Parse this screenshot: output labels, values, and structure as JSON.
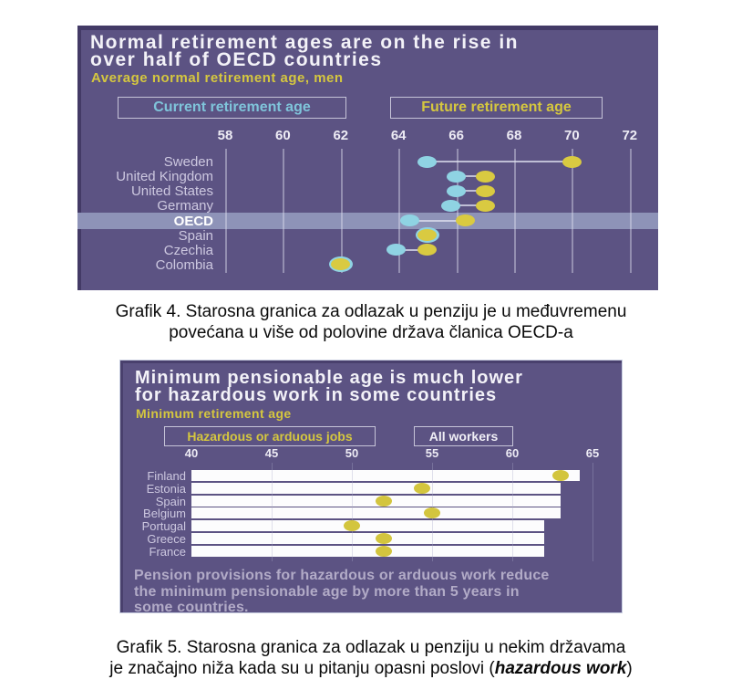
{
  "page_background": "#ffffff",
  "colors": {
    "panel_purple": "#5c5383",
    "highlight_band": "#8e93b8",
    "current_cyan": "#8fd3e3",
    "future_yellow": "#d9ca41",
    "bar_white": "#fcfcfd",
    "gridline": "#d9d7ea",
    "country_label": "#cdc8e0",
    "note_text": "#b2abc7"
  },
  "chart_data": [
    {
      "type": "scatter",
      "variant": "dumbbell-dot-plot",
      "title": "Normal retirement ages are on the rise in over half of OECD countries",
      "title_lines": [
        "Normal retirement ages are on the rise in",
        "over half of OECD countries"
      ],
      "subtitle": "Average normal retirement age, men",
      "categories": [
        "Sweden",
        "United Kingdom",
        "United States",
        "Germany",
        "OECD",
        "Spain",
        "Czechia",
        "Colombia"
      ],
      "series": [
        {
          "name": "Current retirement age",
          "color": "#8fd3e3",
          "values": [
            65,
            66,
            66,
            65.8,
            64.4,
            65,
            63.9,
            62
          ]
        },
        {
          "name": "Future retirement age",
          "color": "#d9ca41",
          "values": [
            70,
            67,
            67,
            67,
            66.3,
            65,
            65,
            62
          ]
        }
      ],
      "xticks": [
        58,
        60,
        62,
        64,
        66,
        68,
        70,
        72
      ],
      "xlim": [
        58,
        72
      ],
      "highlight_row": "OECD",
      "legend_position": "top",
      "grid": "vertical"
    },
    {
      "type": "bar",
      "variant": "horizontal-bars-with-dots",
      "title": "Minimum pensionable age is much lower for hazardous work in some countries",
      "title_lines": [
        "Minimum pensionable age is much lower",
        "for hazardous work in some countries"
      ],
      "subtitle": "Minimum retirement age",
      "categories": [
        "Finland",
        "Estonia",
        "Spain",
        "Belgium",
        "Portugal",
        "Greece",
        "France"
      ],
      "series": [
        {
          "name": "All workers",
          "style": "bar",
          "color": "#fcfcfd",
          "values": [
            64.2,
            63,
            63,
            63,
            62,
            62,
            62
          ]
        },
        {
          "name": "Hazardous or arduous jobs",
          "style": "dot",
          "color": "#d3c53e",
          "values": [
            63,
            54.4,
            52,
            55,
            50,
            52,
            52
          ]
        }
      ],
      "xticks": [
        40,
        45,
        50,
        55,
        60,
        65
      ],
      "xlim": [
        40,
        65
      ],
      "x_base": 40,
      "note": "Pension provisions for hazardous or arduous work reduce the minimum pensionable age by more than 5 years in some countries.",
      "note_lines": [
        "Pension provisions for hazardous or arduous work reduce",
        "the minimum pensionable age by more than 5 years in",
        "some countries."
      ],
      "legend_position": "top",
      "grid": "vertical"
    }
  ],
  "captions": {
    "grafik4": {
      "line1": "Grafik 4. Starosna granica za odlazak u penziju je u međuvremenu",
      "line2": "povećana u više od polovine država članica OECD-a"
    },
    "grafik5": {
      "line1": "Grafik 5. Starosna granica za odlazak u penziju u nekim državama",
      "line2_prefix": "je značajno niža kada su u pitanju opasni poslovi (",
      "line2_italic": "hazardous work",
      "line2_suffix": ")"
    }
  }
}
